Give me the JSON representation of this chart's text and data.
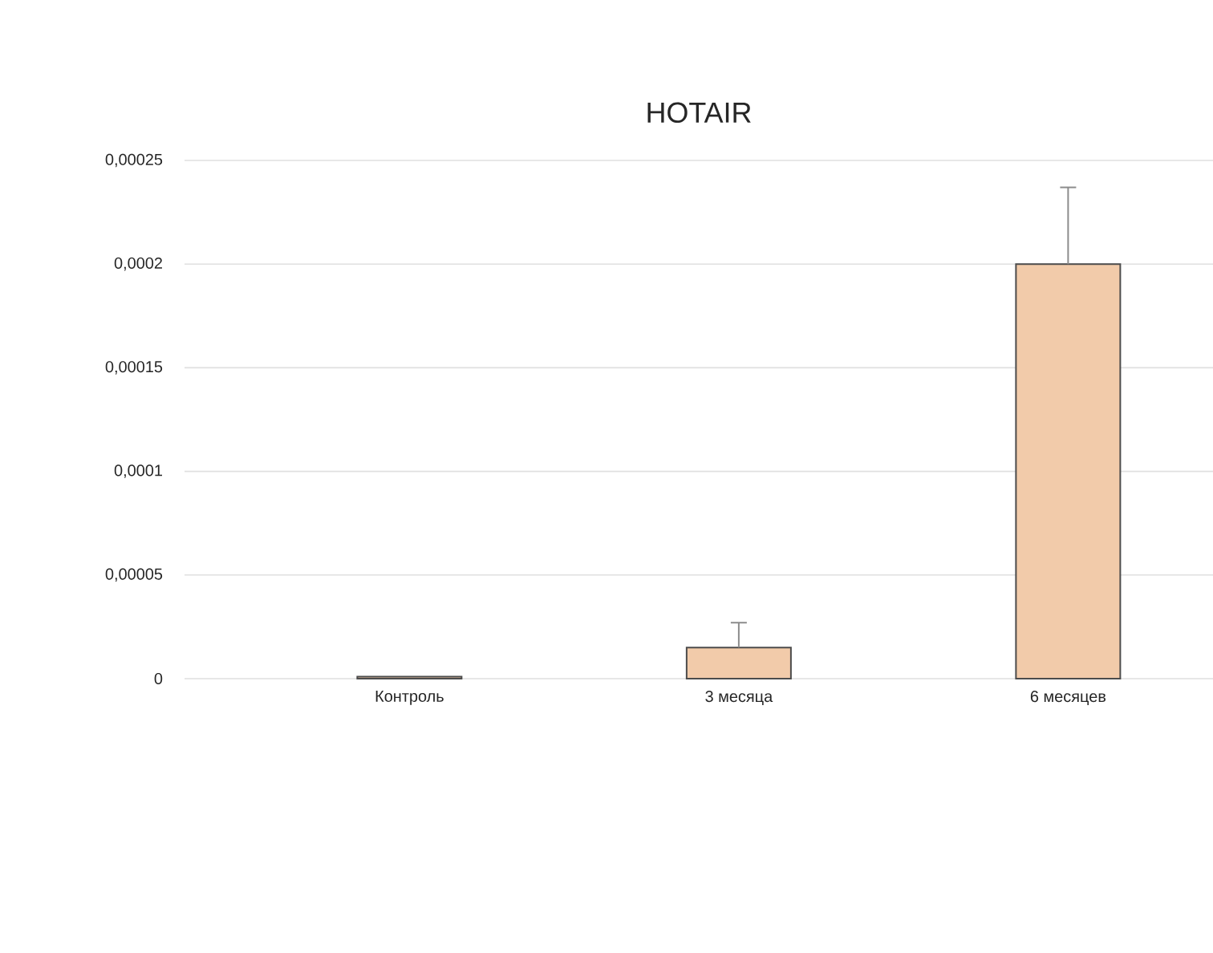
{
  "chart_data": {
    "type": "bar",
    "title": "HOTAIR",
    "categories": [
      "Контроль",
      "3 месяца",
      "6 месяцев"
    ],
    "values": [
      1e-06,
      1.5e-05,
      0.0002
    ],
    "errors": [
      null,
      [
        1.5e-05,
        2.7e-05
      ],
      [
        0.0002,
        0.000237
      ]
    ],
    "color": "#f2cbaa",
    "ylim": [
      0,
      0.00025
    ],
    "yticks": [
      {
        "value": 0,
        "label": "0"
      },
      {
        "value": 5e-05,
        "label": "0,00005"
      },
      {
        "value": 0.0001,
        "label": "0,0001"
      },
      {
        "value": 0.00015,
        "label": "0,00015"
      },
      {
        "value": 0.0002,
        "label": "0,0002"
      },
      {
        "value": 0.00025,
        "label": "0,00025"
      }
    ],
    "grid": "y"
  }
}
